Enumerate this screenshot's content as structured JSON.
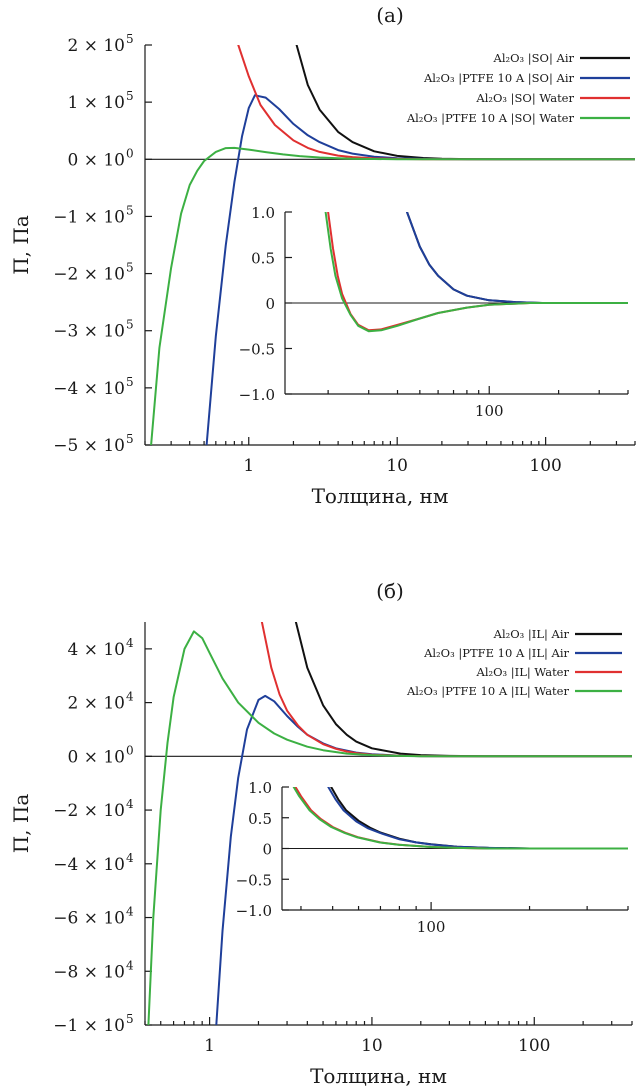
{
  "chart_data": [
    {
      "type": "line",
      "title": "(а)",
      "xlabel": "Толщина, нм",
      "ylabel": "П, Па",
      "x_scale": "log",
      "xlim": [
        0.2,
        400
      ],
      "ylim": [
        -500000,
        200000
      ],
      "x_ticks": [
        {
          "value": 1,
          "label": "1"
        },
        {
          "value": 10,
          "label": "10"
        },
        {
          "value": 100,
          "label": "100"
        }
      ],
      "y_ticks": [
        {
          "value": 200000,
          "label": "2 × 10",
          "exp": "5"
        },
        {
          "value": 100000,
          "label": "1 × 10",
          "exp": "5"
        },
        {
          "value": 0,
          "label": "0 × 10",
          "exp": "0"
        },
        {
          "value": -100000,
          "label": "−1 × 10",
          "exp": "5"
        },
        {
          "value": -200000,
          "label": "−2 × 10",
          "exp": "5"
        },
        {
          "value": -300000,
          "label": "−3 × 10",
          "exp": "5"
        },
        {
          "value": -400000,
          "label": "−4 × 10",
          "exp": "5"
        },
        {
          "value": -500000,
          "label": "−5 × 10",
          "exp": "5"
        }
      ],
      "legend": {
        "placement": "top-right",
        "entries": [
          {
            "label": "Al₂O₃ |SO| Air",
            "color": "#111111"
          },
          {
            "label": "Al₂O₃ |PTFE 10 A |SO| Air",
            "color": "#1f3f9a"
          },
          {
            "label": "Al₂O₃ |SO| Water",
            "color": "#e03030"
          },
          {
            "label": "Al₂O₃ |PTFE 10 A |SO| Water",
            "color": "#3cb043"
          }
        ]
      },
      "series": [
        {
          "color": "#111111",
          "x": [
            2.1,
            2.5,
            3,
            4,
            5,
            7,
            10,
            15,
            20,
            30,
            50,
            100,
            400
          ],
          "y": [
            200000,
            130000,
            87000,
            48000,
            30000,
            14000,
            6000,
            2200,
            1000,
            400,
            100,
            0,
            0
          ]
        },
        {
          "color": "#1f3f9a",
          "x": [
            0.52,
            0.6,
            0.7,
            0.8,
            0.9,
            1.0,
            1.1,
            1.3,
            1.6,
            2,
            2.5,
            3,
            4,
            5,
            7,
            10,
            15,
            20,
            30,
            50,
            100,
            400
          ],
          "y": [
            -500000,
            -310000,
            -150000,
            -40000,
            40000,
            90000,
            112000,
            108000,
            88000,
            62000,
            42000,
            30000,
            16000,
            10000,
            4500,
            1800,
            600,
            250,
            100,
            20,
            0,
            0
          ]
        },
        {
          "color": "#e03030",
          "x": [
            0.85,
            1,
            1.2,
            1.5,
            2,
            2.5,
            3,
            4,
            5,
            7,
            10,
            15,
            20,
            50,
            100,
            400
          ],
          "y": [
            200000,
            145000,
            95000,
            60000,
            33000,
            20000,
            13000,
            6500,
            3800,
            1500,
            600,
            200,
            80,
            10,
            0,
            0
          ]
        },
        {
          "color": "#3cb043",
          "x": [
            0.22,
            0.25,
            0.3,
            0.35,
            0.4,
            0.45,
            0.5,
            0.6,
            0.7,
            0.8,
            1,
            1.3,
            1.7,
            2.2,
            3,
            4,
            5,
            7,
            10,
            15,
            20,
            50,
            100,
            400
          ],
          "y": [
            -500000,
            -330000,
            -190000,
            -95000,
            -45000,
            -20000,
            -3000,
            13000,
            19500,
            20000,
            17000,
            12500,
            8500,
            5500,
            3200,
            1800,
            1100,
            500,
            200,
            60,
            20,
            0,
            0,
            0
          ]
        }
      ]
    },
    {
      "type": "line",
      "title": "",
      "x_scale": "log",
      "xlim": [
        13,
        400
      ],
      "ylim": [
        -1.0,
        1.0
      ],
      "x_ticks": [
        {
          "value": 100,
          "label": "100"
        }
      ],
      "y_ticks": [
        {
          "value": 1.0,
          "label": "1.0"
        },
        {
          "value": 0.5,
          "label": "0.5"
        },
        {
          "value": 0,
          "label": "0"
        },
        {
          "value": -0.5,
          "label": "−0.5"
        },
        {
          "value": -1.0,
          "label": "−1.0"
        }
      ],
      "series": [
        {
          "color": "#111111",
          "x": [
            44,
            47,
            50,
            55,
            60,
            70,
            80,
            100,
            130,
            170,
            220,
            300,
            400
          ],
          "y": [
            1.0,
            0.8,
            0.62,
            0.42,
            0.3,
            0.15,
            0.08,
            0.03,
            0.01,
            0.0,
            0.0,
            0.0,
            0.0
          ]
        },
        {
          "color": "#1f3f9a",
          "x": [
            44,
            47,
            50,
            55,
            60,
            70,
            80,
            100,
            130,
            170,
            220,
            300,
            400
          ],
          "y": [
            1.0,
            0.8,
            0.62,
            0.42,
            0.3,
            0.15,
            0.08,
            0.03,
            0.01,
            0.0,
            0.0,
            0.0,
            0.0
          ]
        },
        {
          "color": "#e03030",
          "x": [
            20,
            21,
            22,
            23,
            25,
            27,
            30,
            34,
            40,
            50,
            60,
            80,
            100,
            150,
            200,
            300,
            400
          ],
          "y": [
            1.0,
            0.6,
            0.3,
            0.1,
            -0.12,
            -0.24,
            -0.3,
            -0.29,
            -0.24,
            -0.17,
            -0.11,
            -0.05,
            -0.02,
            0.0,
            0.0,
            0.0,
            0.0
          ]
        },
        {
          "color": "#3cb043",
          "x": [
            19.5,
            20.5,
            21.5,
            23,
            25,
            27,
            30,
            34,
            40,
            50,
            60,
            80,
            100,
            150,
            200,
            300,
            400
          ],
          "y": [
            1.0,
            0.6,
            0.3,
            0.05,
            -0.13,
            -0.25,
            -0.31,
            -0.3,
            -0.25,
            -0.17,
            -0.11,
            -0.05,
            -0.02,
            0.0,
            0.0,
            0.0,
            0.0
          ]
        }
      ]
    },
    {
      "type": "line",
      "title": "(б)",
      "xlabel": "Толщина, нм",
      "ylabel": "П, Па",
      "x_scale": "log",
      "xlim": [
        0.4,
        400
      ],
      "ylim": [
        -100000,
        50000
      ],
      "x_ticks": [
        {
          "value": 1,
          "label": "1"
        },
        {
          "value": 10,
          "label": "10"
        },
        {
          "value": 100,
          "label": "100"
        }
      ],
      "y_ticks": [
        {
          "value": 40000,
          "label": "4 × 10",
          "exp": "4"
        },
        {
          "value": 20000,
          "label": "2 × 10",
          "exp": "4"
        },
        {
          "value": 0,
          "label": "0 × 10",
          "exp": "0"
        },
        {
          "value": -20000,
          "label": "−2 × 10",
          "exp": "4"
        },
        {
          "value": -40000,
          "label": "−4 × 10",
          "exp": "4"
        },
        {
          "value": -60000,
          "label": "−6 × 10",
          "exp": "4"
        },
        {
          "value": -80000,
          "label": "−8 × 10",
          "exp": "4"
        },
        {
          "value": -100000,
          "label": "−1 × 10",
          "exp": "5"
        }
      ],
      "legend": {
        "placement": "top-right",
        "entries": [
          {
            "label": "Al₂O₃ |IL| Air",
            "color": "#111111"
          },
          {
            "label": "Al₂O₃ |PTFE 10 A |IL| Air",
            "color": "#1f3f9a"
          },
          {
            "label": "Al₂O₃ |IL| Water",
            "color": "#e03030"
          },
          {
            "label": "Al₂O₃ |PTFE 10 A |IL| Water",
            "color": "#3cb043"
          }
        ]
      },
      "series": [
        {
          "color": "#111111",
          "x": [
            3.4,
            4,
            5,
            6,
            7,
            8,
            10,
            15,
            20,
            30,
            50,
            100,
            400
          ],
          "y": [
            50000,
            33000,
            19000,
            12000,
            8000,
            5500,
            3000,
            1000,
            450,
            150,
            30,
            0,
            0
          ]
        },
        {
          "color": "#1f3f9a",
          "x": [
            1.1,
            1.2,
            1.35,
            1.5,
            1.7,
            2.0,
            2.2,
            2.5,
            3,
            3.5,
            4,
            5,
            6,
            8,
            10,
            15,
            20,
            30,
            50,
            100,
            400
          ],
          "y": [
            -100000,
            -65000,
            -30000,
            -8000,
            10000,
            21000,
            22500,
            20500,
            15000,
            11000,
            8000,
            4800,
            3000,
            1400,
            800,
            250,
            100,
            30,
            0,
            0,
            0
          ]
        },
        {
          "color": "#e03030",
          "x": [
            2.1,
            2.4,
            2.7,
            3,
            3.5,
            4,
            5,
            6,
            7,
            8,
            10,
            15,
            20,
            30,
            50,
            100,
            400
          ],
          "y": [
            50000,
            33000,
            23000,
            17000,
            11500,
            8000,
            4500,
            2800,
            1800,
            1200,
            600,
            180,
            70,
            20,
            0,
            0,
            0
          ]
        },
        {
          "color": "#3cb043",
          "x": [
            0.42,
            0.45,
            0.5,
            0.55,
            0.6,
            0.7,
            0.8,
            0.9,
            1.0,
            1.2,
            1.5,
            2,
            2.5,
            3,
            4,
            5,
            7,
            10,
            15,
            20,
            30,
            50,
            100,
            400
          ],
          "y": [
            -100000,
            -60000,
            -20000,
            5000,
            22000,
            40000,
            46500,
            44000,
            38500,
            29000,
            20000,
            12500,
            8500,
            6200,
            3600,
            2300,
            1000,
            450,
            150,
            60,
            20,
            0,
            0,
            0
          ]
        }
      ]
    },
    {
      "type": "line",
      "title": "",
      "x_scale": "log",
      "xlim": [
        35,
        400
      ],
      "ylim": [
        -1.0,
        1.0
      ],
      "x_ticks": [
        {
          "value": 100,
          "label": "100"
        }
      ],
      "y_ticks": [
        {
          "value": 1.0,
          "label": "1.0"
        },
        {
          "value": 0.5,
          "label": "0.5"
        },
        {
          "value": 0,
          "label": "0"
        },
        {
          "value": -0.5,
          "label": "−0.5"
        },
        {
          "value": -1.0,
          "label": "−1.0"
        }
      ],
      "series": [
        {
          "color": "#111111",
          "x": [
            49.5,
            52,
            55,
            60,
            65,
            70,
            80,
            90,
            100,
            120,
            150,
            200,
            300,
            400
          ],
          "y": [
            1.0,
            0.8,
            0.62,
            0.45,
            0.34,
            0.26,
            0.16,
            0.1,
            0.07,
            0.03,
            0.01,
            0.0,
            0.0,
            0.0
          ]
        },
        {
          "color": "#1f3f9a",
          "x": [
            48.5,
            51,
            54,
            59,
            64,
            70,
            80,
            90,
            100,
            120,
            150,
            200,
            300,
            400
          ],
          "y": [
            1.0,
            0.8,
            0.62,
            0.44,
            0.33,
            0.25,
            0.15,
            0.1,
            0.065,
            0.028,
            0.01,
            0.0,
            0.0,
            0.0
          ]
        },
        {
          "color": "#e03030",
          "x": [
            38.5,
            40,
            43,
            46,
            50,
            55,
            60,
            70,
            80,
            100,
            120,
            150,
            200,
            300,
            400
          ],
          "y": [
            1.0,
            0.85,
            0.62,
            0.48,
            0.35,
            0.25,
            0.18,
            0.1,
            0.06,
            0.025,
            0.01,
            0.0,
            0.0,
            0.0,
            0.0
          ]
        },
        {
          "color": "#3cb043",
          "x": [
            38,
            39.5,
            42.5,
            45.5,
            49.5,
            54.5,
            59.5,
            69.5,
            79.5,
            100,
            120,
            150,
            200,
            300,
            400
          ],
          "y": [
            1.0,
            0.85,
            0.62,
            0.48,
            0.35,
            0.25,
            0.18,
            0.1,
            0.06,
            0.025,
            0.01,
            0.0,
            0.0,
            0.0,
            0.0
          ]
        }
      ]
    }
  ]
}
